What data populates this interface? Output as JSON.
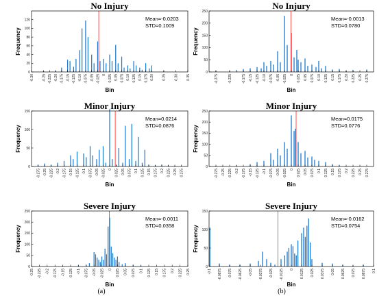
{
  "figure_labels": [
    "(a)",
    "(b)"
  ],
  "chart_data": [
    {
      "type": "bar",
      "title": "No Injury",
      "xlabel": "Bin",
      "ylabel": "Frequency",
      "mean_text": "Mean=-0.0203",
      "std_text": "STD=0.1009",
      "mean": -0.0203,
      "xlim": [
        -0.3,
        0.35
      ],
      "ylim": [
        0,
        140
      ],
      "yticks": [
        0,
        20,
        40,
        60,
        80,
        100,
        120
      ],
      "xticks": [
        -0.3,
        -0.25,
        -0.225,
        -0.2,
        -0.175,
        -0.15,
        -0.125,
        -0.1,
        -0.075,
        -0.05,
        -0.025,
        0,
        0.025,
        0.05,
        0.075,
        0.1,
        0.125,
        0.15,
        0.175,
        0.2,
        0.25,
        0.3,
        0.35
      ],
      "xtick_labels": [
        "-0.30",
        "-0.25",
        "-0.225",
        "-0.20",
        "-0.175",
        "-0.15",
        "-0.125",
        "-0.10",
        "-0.075",
        "-0.05",
        "-0.025",
        "0",
        "0.025",
        "0.05",
        "0.075",
        "0.10",
        "0.125",
        "0.15",
        "0.175",
        "0.20",
        "0.25",
        "0.30",
        "0.35"
      ],
      "x": [
        -0.25,
        -0.2,
        -0.175,
        -0.15,
        -0.14,
        -0.125,
        -0.115,
        -0.1,
        -0.09,
        -0.075,
        -0.065,
        -0.05,
        -0.04,
        -0.025,
        -0.015,
        0,
        0.01,
        0.025,
        0.035,
        0.05,
        0.06,
        0.075,
        0.085,
        0.1,
        0.11,
        0.125,
        0.135,
        0.15,
        0.16,
        0.175,
        0.19,
        0.2,
        0.25
      ],
      "values": [
        2,
        3,
        10,
        28,
        25,
        12,
        30,
        50,
        100,
        118,
        80,
        40,
        20,
        70,
        25,
        30,
        20,
        40,
        25,
        62,
        20,
        35,
        10,
        15,
        8,
        25,
        15,
        10,
        5,
        20,
        8,
        15,
        3
      ]
    },
    {
      "type": "bar",
      "title": "No Injury",
      "xlabel": "Bin",
      "ylabel": "Frequency",
      "mean_text": "Mean=-0.0013",
      "std_text": "STD=0.0780",
      "mean": -0.0013,
      "xlim": [
        -0.3,
        0.3
      ],
      "ylim": [
        0,
        250
      ],
      "yticks": [
        0,
        50,
        100,
        150,
        200,
        250
      ],
      "xticks": [
        -0.275,
        -0.225,
        -0.175,
        -0.15,
        -0.125,
        -0.1,
        -0.075,
        -0.05,
        -0.025,
        0,
        0.025,
        0.05,
        0.075,
        0.1,
        0.125,
        0.15,
        0.175,
        0.2,
        0.225,
        0.25,
        0.275
      ],
      "xtick_labels": [
        "-0.275",
        "-0.225",
        "-0.175",
        "-0.15",
        "-0.125",
        "-0.10",
        "-0.075",
        "-0.05",
        "-0.025",
        "0",
        "0.025",
        "0.05",
        "0.075",
        "0.10",
        "0.125",
        "0.15",
        "0.175",
        "0.20",
        "0.225",
        "0.25",
        "0.275"
      ],
      "x": [
        -0.275,
        -0.225,
        -0.2,
        -0.175,
        -0.15,
        -0.125,
        -0.11,
        -0.1,
        -0.09,
        -0.075,
        -0.065,
        -0.05,
        -0.04,
        -0.025,
        -0.015,
        0,
        0.01,
        0.02,
        0.025,
        0.035,
        0.05,
        0.06,
        0.075,
        0.09,
        0.1,
        0.11,
        0.125,
        0.15,
        0.175,
        0.2,
        0.225,
        0.275
      ],
      "values": [
        5,
        5,
        8,
        12,
        15,
        20,
        15,
        40,
        25,
        45,
        30,
        85,
        40,
        230,
        110,
        160,
        60,
        90,
        50,
        40,
        55,
        25,
        30,
        20,
        45,
        15,
        25,
        10,
        12,
        5,
        8,
        10
      ]
    },
    {
      "type": "bar",
      "title": "Minor Injury",
      "xlabel": "Bin",
      "ylabel": "Frequency",
      "mean_text": "Mean=0.0214",
      "std_text": "STD=0.0876",
      "mean": 0.0214,
      "xlim": [
        -0.3,
        0.3
      ],
      "ylim": [
        0,
        150
      ],
      "yticks": [
        0,
        50,
        100,
        150
      ],
      "xticks": [
        -0.275,
        -0.25,
        -0.225,
        -0.2,
        -0.175,
        -0.15,
        -0.125,
        -0.1,
        -0.075,
        -0.05,
        -0.025,
        0,
        0.025,
        0.05,
        0.075,
        0.1,
        0.125,
        0.15,
        0.175,
        0.2,
        0.225,
        0.25,
        0.275
      ],
      "xtick_labels": [
        "-0.275",
        "-0.25",
        "-0.225",
        "-0.2",
        "-0.175",
        "-0.15",
        "-0.125",
        "-0.1",
        "-0.075",
        "-0.05",
        "-0.025",
        "0",
        "0.025",
        "0.05",
        "0.075",
        "0.1",
        "0.125",
        "0.15",
        "0.175",
        "0.2",
        "0.225",
        "0.25",
        "0.275"
      ],
      "x": [
        -0.275,
        -0.25,
        -0.225,
        -0.2,
        -0.175,
        -0.15,
        -0.14,
        -0.125,
        -0.1,
        -0.09,
        -0.075,
        -0.065,
        -0.05,
        -0.04,
        -0.025,
        -0.015,
        0,
        0.01,
        0.025,
        0.035,
        0.05,
        0.06,
        0.075,
        0.085,
        0.1,
        0.11,
        0.125,
        0.135,
        0.15,
        0.175,
        0.2,
        0.225,
        0.25
      ],
      "values": [
        5,
        8,
        5,
        10,
        15,
        30,
        20,
        40,
        35,
        25,
        55,
        30,
        20,
        45,
        55,
        10,
        155,
        20,
        5,
        50,
        10,
        110,
        20,
        115,
        15,
        80,
        10,
        45,
        5,
        3,
        5,
        3,
        2
      ]
    },
    {
      "type": "bar",
      "title": "Minor Injury",
      "xlabel": "Bin",
      "ylabel": "Frequency",
      "mean_text": "Mean=0.0175",
      "std_text": "STD=0.0776",
      "mean": 0.0175,
      "xlim": [
        -0.3,
        0.3
      ],
      "ylim": [
        0,
        250
      ],
      "yticks": [
        0,
        50,
        100,
        150,
        200,
        250
      ],
      "xticks": [
        -0.275,
        -0.25,
        -0.225,
        -0.2,
        -0.175,
        -0.15,
        -0.125,
        -0.1,
        -0.075,
        -0.05,
        -0.025,
        0,
        0.025,
        0.05,
        0.075,
        0.1,
        0.125,
        0.15,
        0.175,
        0.2,
        0.225,
        0.25,
        0.275
      ],
      "xtick_labels": [
        "-0.275",
        "-0.25",
        "-0.225",
        "-0.2",
        "-0.175",
        "-0.15",
        "-0.125",
        "-0.1",
        "-0.075",
        "-0.05",
        "-0.025",
        "0",
        "0.025",
        "0.05",
        "0.075",
        "0.1",
        "0.125",
        "0.15",
        "0.175",
        "0.2",
        "0.225",
        "0.25",
        "0.275"
      ],
      "x": [
        -0.275,
        -0.25,
        -0.2,
        -0.15,
        -0.125,
        -0.1,
        -0.075,
        -0.065,
        -0.05,
        -0.04,
        -0.025,
        -0.015,
        0,
        0.01,
        0.015,
        0.025,
        0.035,
        0.05,
        0.06,
        0.075,
        0.085,
        0.1,
        0.125,
        0.15,
        0.175,
        0.2,
        0.225
      ],
      "values": [
        3,
        3,
        5,
        10,
        20,
        25,
        60,
        30,
        80,
        50,
        110,
        80,
        230,
        160,
        170,
        110,
        60,
        70,
        40,
        45,
        30,
        25,
        20,
        10,
        5,
        3,
        2
      ]
    },
    {
      "type": "bar",
      "title": "Severe Injury",
      "xlabel": "Bin",
      "ylabel": "Frequency",
      "mean_text": "Mean=-0.0011",
      "std_text": "STD=0.0358",
      "mean": -0.0011,
      "xlim": [
        -0.25,
        0.25
      ],
      "ylim": [
        0,
        250
      ],
      "yticks": [
        0,
        50,
        100,
        150,
        200,
        250
      ],
      "xticks": [
        -0.25,
        -0.225,
        -0.2,
        -0.175,
        -0.15,
        -0.125,
        -0.1,
        -0.075,
        -0.05,
        -0.025,
        0,
        0.025,
        0.05,
        0.075,
        0.1,
        0.125,
        0.15,
        0.175,
        0.2,
        0.225,
        0.25
      ],
      "xtick_labels": [
        "-0.25",
        "-0.225",
        "-0.2",
        "-0.175",
        "-0.15",
        "-0.125",
        "-0.1",
        "-0.075",
        "-0.05",
        "-0.025",
        "0",
        "0.025",
        "0.05",
        "0.075",
        "0.1",
        "0.125",
        "0.15",
        "0.175",
        "0.2",
        "0.225",
        "0.25"
      ],
      "x": [
        -0.25,
        -0.15,
        -0.1,
        -0.075,
        -0.065,
        -0.05,
        -0.045,
        -0.04,
        -0.035,
        -0.03,
        -0.025,
        -0.02,
        -0.015,
        -0.01,
        -0.005,
        0,
        0.005,
        0.01,
        0.015,
        0.02,
        0.025,
        0.03,
        0.04,
        0.05,
        0.075,
        0.1
      ],
      "values": [
        2,
        3,
        5,
        8,
        15,
        65,
        55,
        40,
        30,
        20,
        45,
        30,
        80,
        55,
        180,
        220,
        90,
        60,
        40,
        30,
        45,
        20,
        10,
        15,
        8,
        5
      ]
    },
    {
      "type": "bar",
      "title": "Severe Injury",
      "xlabel": "Bin",
      "ylabel": "Frequency",
      "mean_text": "Mean=-0.0162",
      "std_text": "STD=0.0754",
      "mean": -0.0162,
      "xlim": [
        -0.1,
        0.1
      ],
      "ylim": [
        0,
        150
      ],
      "yticks": [
        0,
        50,
        100,
        150
      ],
      "xticks": [
        -0.1,
        -0.0875,
        -0.075,
        -0.0625,
        -0.05,
        -0.0375,
        -0.025,
        -0.0125,
        0,
        0.0125,
        0.025,
        0.0375,
        0.05,
        0.0625,
        0.075,
        0.0875,
        0.1
      ],
      "xtick_labels": [
        "-0.1",
        "-0.0875",
        "-0.075",
        "-0.0625",
        "-0.05",
        "-0.0375",
        "-0.025",
        "-0.0125",
        "0",
        "0.0125",
        "0.025",
        "0.0375",
        "0.05",
        "0.0625",
        "0.075",
        "0.0875",
        "0.1"
      ],
      "x": [
        -0.099,
        -0.0875,
        -0.075,
        -0.0625,
        -0.05,
        -0.04,
        -0.035,
        -0.03,
        -0.025,
        -0.02,
        -0.0125,
        -0.008,
        -0.005,
        -0.003,
        0,
        0.002,
        0.004,
        0.006,
        0.008,
        0.0125,
        0.015,
        0.017,
        0.019,
        0.021,
        0.023,
        0.025,
        0.0375,
        0.05,
        0.0625,
        0.075,
        0.0875
      ],
      "values": [
        105,
        8,
        5,
        5,
        8,
        15,
        40,
        20,
        10,
        5,
        20,
        30,
        40,
        50,
        60,
        55,
        35,
        30,
        70,
        90,
        105,
        80,
        110,
        130,
        65,
        20,
        10,
        8,
        5,
        3,
        5
      ]
    }
  ]
}
